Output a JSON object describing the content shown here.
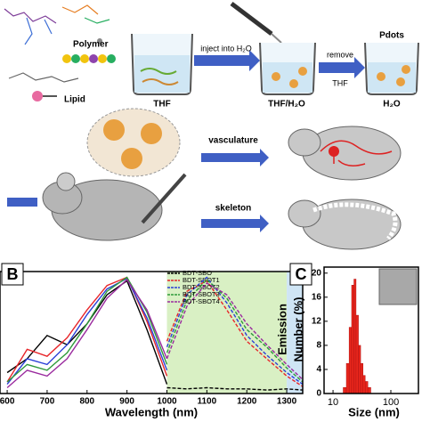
{
  "schematic": {
    "polymer": "Polymer",
    "lipid": "Lipid",
    "thf": "THF",
    "inject": "inject into H₂O",
    "thf_h2o": "THF/H₂O",
    "remove": "remove",
    "remove_thf": "THF",
    "pdots": "Pdots",
    "h2o": "H₂O",
    "vasculature": "vasculature",
    "skeleton": "skeleton"
  },
  "chart_data": [
    {
      "type": "line",
      "panel_label": "B",
      "xlabel": "Wavelength (nm)",
      "y2label": "Emission",
      "x": [
        600,
        650,
        700,
        750,
        800,
        850,
        900,
        950,
        1000,
        1050,
        1100,
        1150,
        1200,
        1250,
        1300,
        1340
      ],
      "xlim": [
        582,
        1340
      ],
      "xticks": [
        600,
        700,
        800,
        900,
        1000,
        1100,
        1200,
        1300
      ],
      "ylim": [
        0,
        1.05
      ],
      "y2lim": [
        0,
        1.05
      ],
      "shaded_spans": [
        {
          "xlim": [
            1000,
            1300
          ],
          "color": "#d9f0c4"
        },
        {
          "xlim": [
            1300,
            1340
          ],
          "color": "#cfe5f5"
        }
      ],
      "series": [
        {
          "name": "BDT-SBO",
          "color": "#000000",
          "values": [
            0.18,
            0.3,
            0.5,
            0.42,
            0.6,
            0.85,
            0.97,
            0.55,
            0.08,
            null,
            null,
            null,
            null,
            null,
            null,
            null
          ],
          "emission": [
            null,
            null,
            null,
            null,
            null,
            null,
            null,
            null,
            0.05,
            0.04,
            0.05,
            0.04,
            0.04,
            0.03,
            0.04,
            0.03
          ]
        },
        {
          "name": "BDT-SBOT1",
          "color": "#e8262a",
          "values": [
            0.1,
            0.38,
            0.32,
            0.48,
            0.72,
            0.93,
            1.0,
            0.62,
            0.15,
            null,
            null,
            null,
            null,
            null,
            null,
            null
          ],
          "emission": [
            null,
            null,
            null,
            null,
            null,
            null,
            null,
            null,
            0.45,
            0.88,
            0.97,
            0.72,
            0.45,
            0.3,
            0.15,
            0.06
          ]
        },
        {
          "name": "BDT-SBOT2",
          "color": "#2a3fd6",
          "values": [
            0.08,
            0.3,
            0.25,
            0.42,
            0.68,
            0.9,
            0.99,
            0.65,
            0.2,
            null,
            null,
            null,
            null,
            null,
            null,
            null
          ],
          "emission": [
            null,
            null,
            null,
            null,
            null,
            null,
            null,
            null,
            0.4,
            0.85,
            1.0,
            0.78,
            0.5,
            0.33,
            0.18,
            0.08
          ]
        },
        {
          "name": "BDT-SBOT3",
          "color": "#2e9a3a",
          "values": [
            0.1,
            0.25,
            0.2,
            0.35,
            0.6,
            0.88,
            1.0,
            0.7,
            0.25,
            null,
            null,
            null,
            null,
            null,
            null,
            null
          ],
          "emission": [
            null,
            null,
            null,
            null,
            null,
            null,
            null,
            null,
            0.35,
            0.8,
            0.98,
            0.82,
            0.55,
            0.4,
            0.22,
            0.1
          ]
        },
        {
          "name": "BDT-SBOT4",
          "color": "#9a2a9e",
          "values": [
            0.05,
            0.2,
            0.15,
            0.3,
            0.55,
            0.82,
            0.98,
            0.72,
            0.3,
            null,
            null,
            null,
            null,
            null,
            null,
            null
          ],
          "emission": [
            null,
            null,
            null,
            null,
            null,
            null,
            null,
            null,
            0.3,
            0.75,
            0.95,
            0.85,
            0.6,
            0.42,
            0.25,
            0.12
          ]
        }
      ]
    },
    {
      "type": "histogram",
      "panel_label": "C",
      "xlabel": "Size (nm)",
      "ylabel": "Number (%)",
      "log_x": true,
      "color": "#e8261c",
      "bins": [
        15,
        17,
        19,
        21,
        23,
        25,
        27.5,
        30,
        33,
        36,
        40,
        45
      ],
      "values": [
        1,
        5,
        11,
        18,
        19,
        13,
        8,
        5,
        3,
        2,
        1
      ],
      "xlim": [
        7,
        300
      ],
      "xticks": [
        10,
        100
      ],
      "ylim": [
        0,
        21
      ],
      "yticks": [
        0,
        4,
        8,
        12,
        16,
        20
      ]
    }
  ]
}
